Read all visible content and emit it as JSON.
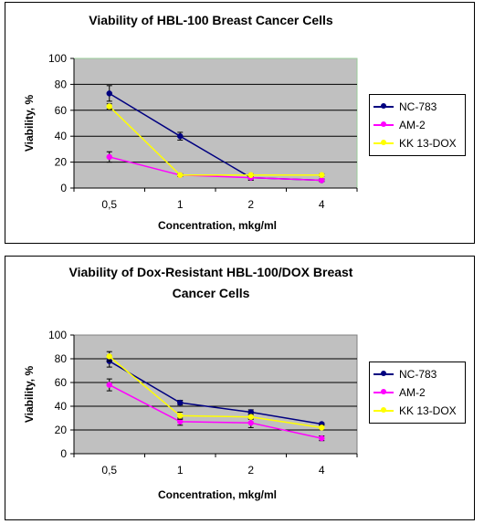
{
  "chart_data": [
    {
      "type": "line",
      "title": "Viability of HBL-100 Breast Cancer Cells",
      "xlabel": "Concentration, mkg/ml",
      "ylabel": "Viability, %",
      "categories": [
        "0,5",
        "1",
        "2",
        "4"
      ],
      "ylim": [
        0,
        100
      ],
      "yticks": [
        0,
        20,
        40,
        60,
        80,
        100
      ],
      "grid": true,
      "legend_position": "right",
      "plot_background": "#c0c0c0",
      "series": [
        {
          "name": "NC-783",
          "color": "#000080",
          "values": [
            73,
            40,
            8,
            6
          ],
          "errors": [
            6,
            3,
            2,
            1
          ]
        },
        {
          "name": "AM-2",
          "color": "#ff00ff",
          "values": [
            24,
            10,
            8,
            6
          ],
          "errors": [
            4,
            1,
            1,
            1
          ]
        },
        {
          "name": "KK 13-DOX",
          "color": "#ffff00",
          "values": [
            63,
            10,
            10,
            10
          ],
          "errors": [
            2,
            1,
            1,
            1
          ]
        }
      ]
    },
    {
      "type": "line",
      "title": "Viability of Dox-Resistant HBL-100/DOX Breast Cancer Cells",
      "title_lines": [
        "Viability of Dox-Resistant HBL-100/DOX Breast",
        "Cancer Cells"
      ],
      "xlabel": "Concentration, mkg/ml",
      "ylabel": "Viability, %",
      "categories": [
        "0,5",
        "1",
        "2",
        "4"
      ],
      "ylim": [
        0,
        100
      ],
      "yticks": [
        0,
        20,
        40,
        60,
        80,
        100
      ],
      "grid": true,
      "legend_position": "right",
      "plot_background": "#c0c0c0",
      "series": [
        {
          "name": "NC-783",
          "color": "#000080",
          "values": [
            78,
            43,
            35,
            25
          ],
          "errors": [
            5,
            2,
            2,
            1
          ]
        },
        {
          "name": "AM-2",
          "color": "#ff00ff",
          "values": [
            58,
            27,
            26,
            13
          ],
          "errors": [
            5,
            3,
            4,
            2
          ]
        },
        {
          "name": "KK 13-DOX",
          "color": "#ffff00",
          "values": [
            82,
            32,
            31,
            22
          ],
          "errors": [
            4,
            3,
            2,
            2
          ]
        }
      ]
    }
  ]
}
